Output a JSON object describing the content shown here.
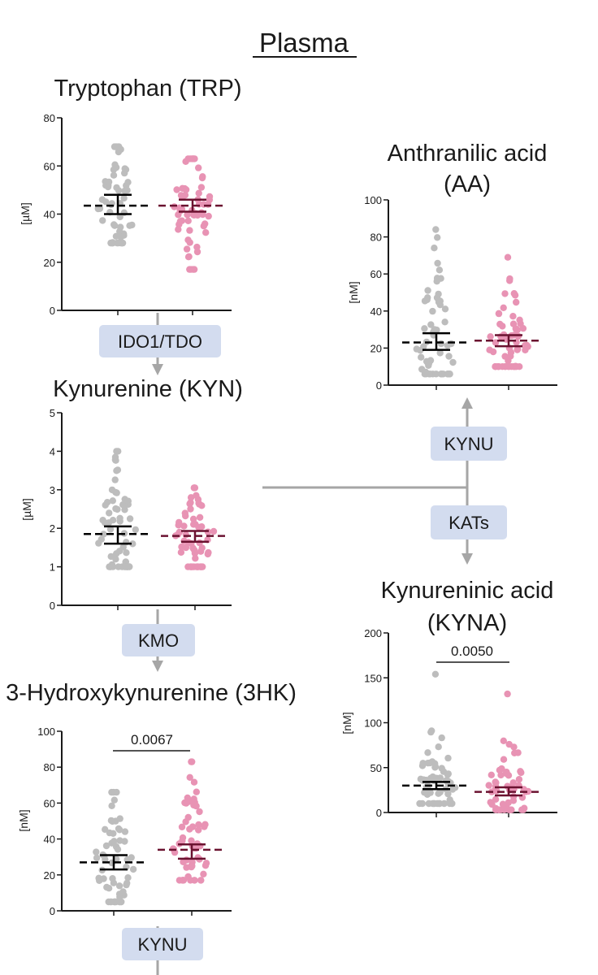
{
  "figure": {
    "heading": "Plasma",
    "enzymes": {
      "ido1_tdo": "IDO1/TDO",
      "kmo": "KMO",
      "kynu_bottom": "KYNU",
      "kynu_right": "KYNU",
      "kats": "KATs"
    },
    "colors": {
      "group1": "#bdbdbd",
      "group2": "#e893b4",
      "group2_summary": "#6b1230",
      "summary": "#000000",
      "enzyme_box": "#d3dcef",
      "arrow": "#a6a6a6"
    }
  },
  "chart_data": [
    {
      "id": "trp",
      "type": "scatter",
      "title": "Tryptophan (TRP)",
      "ylabel": "[µM]",
      "ylim": [
        0,
        80
      ],
      "yticks": [
        0,
        20,
        40,
        60,
        80
      ],
      "groups": [
        {
          "median": 43.5,
          "ci": [
            40,
            48
          ],
          "y_range": [
            28,
            68
          ],
          "n": 60
        },
        {
          "median": 43.5,
          "ci": [
            41,
            46
          ],
          "y_range": [
            17,
            63
          ],
          "n": 60
        }
      ],
      "annotation": ""
    },
    {
      "id": "kyn",
      "type": "scatter",
      "title": "Kynurenine (KYN)",
      "ylabel": "[µM]",
      "ylim": [
        0,
        5
      ],
      "yticks": [
        0,
        1,
        2,
        3,
        4,
        5
      ],
      "groups": [
        {
          "median": 1.85,
          "ci": [
            1.6,
            2.05
          ],
          "y_range": [
            1.0,
            4.0
          ],
          "n": 60
        },
        {
          "median": 1.8,
          "ci": [
            1.65,
            1.93
          ],
          "y_range": [
            1.0,
            3.05
          ],
          "n": 60
        }
      ],
      "annotation": ""
    },
    {
      "id": "3hk",
      "type": "scatter",
      "title": "3-Hydroxykynurenine (3HK)",
      "ylabel": "[nM]",
      "ylim": [
        0,
        100
      ],
      "yticks": [
        0,
        20,
        40,
        60,
        80,
        100
      ],
      "groups": [
        {
          "median": 27,
          "ci": [
            23,
            31
          ],
          "y_range": [
            5,
            66
          ],
          "n": 60
        },
        {
          "median": 34,
          "ci": [
            29,
            37
          ],
          "y_range": [
            17,
            83
          ],
          "n": 60
        }
      ],
      "annotation": "0.0067"
    },
    {
      "id": "aa",
      "type": "scatter",
      "title": "Anthranilic acid",
      "title_line2": "(AA)",
      "ylabel": "[nM]",
      "ylim": [
        0,
        100
      ],
      "yticks": [
        0,
        20,
        40,
        60,
        80,
        100
      ],
      "groups": [
        {
          "median": 23,
          "ci": [
            19,
            28
          ],
          "y_range": [
            6,
            84
          ],
          "n": 60
        },
        {
          "median": 24,
          "ci": [
            21,
            27
          ],
          "y_range": [
            10,
            69
          ],
          "n": 60
        }
      ],
      "annotation": ""
    },
    {
      "id": "kyna",
      "type": "scatter",
      "title": "Kynureninic acid",
      "title_line2": "(KYNA)",
      "ylabel": "[nM]",
      "ylim": [
        0,
        200
      ],
      "yticks": [
        0,
        50,
        100,
        150,
        200
      ],
      "groups": [
        {
          "median": 30,
          "ci": [
            26,
            34
          ],
          "y_range": [
            10,
            154
          ],
          "n": 60
        },
        {
          "median": 23,
          "ci": [
            19,
            28
          ],
          "y_range": [
            3,
            132
          ],
          "n": 60
        }
      ],
      "annotation": "0.0050"
    }
  ]
}
